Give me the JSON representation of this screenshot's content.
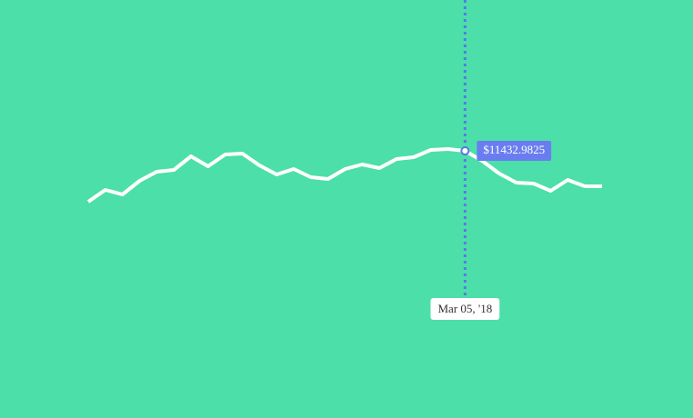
{
  "chart_data": {
    "type": "line",
    "categories": [
      null,
      null,
      null,
      null,
      null,
      null,
      null,
      null,
      null,
      null,
      null,
      null,
      null,
      null,
      null,
      null,
      null,
      null,
      null,
      null,
      null,
      null,
      "Mar 05, '18",
      null,
      null,
      null,
      null,
      null,
      null,
      null,
      null
    ],
    "series": [
      {
        "color": "#ffffff",
        "values": [
          10398,
          10638,
          10546,
          10823,
          11008,
          11044,
          11322,
          11118,
          11359,
          11377,
          11137,
          10952,
          11063,
          10897,
          10860,
          11063,
          11155,
          11081,
          11266,
          11303,
          11451,
          11470,
          11432.9825,
          11229,
          10971,
          10786,
          10767,
          10620,
          10841,
          10712,
          10712
        ],
        "value_labels": [
          null,
          null,
          null,
          null,
          null,
          null,
          null,
          null,
          null,
          null,
          null,
          null,
          null,
          null,
          null,
          null,
          null,
          null,
          null,
          null,
          null,
          null,
          "$11432.9825",
          null,
          null,
          null,
          null,
          null,
          null,
          null,
          null
        ]
      }
    ],
    "ylim": [
      6000,
      14500
    ]
  }
}
